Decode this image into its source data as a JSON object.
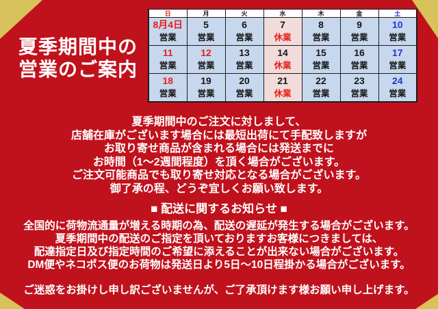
{
  "title": {
    "line1": "夏季期間中の",
    "line2": "営業のご案内"
  },
  "calendar": {
    "day_headers": [
      {
        "label": "日",
        "color": "red"
      },
      {
        "label": "月",
        "color": "black"
      },
      {
        "label": "火",
        "color": "black"
      },
      {
        "label": "水",
        "color": "black"
      },
      {
        "label": "木",
        "color": "black"
      },
      {
        "label": "金",
        "color": "black"
      },
      {
        "label": "土",
        "color": "blue"
      }
    ],
    "open_label": "営業",
    "closed_label": "休業",
    "weeks": [
      [
        {
          "date": "8月4日",
          "date_color": "red",
          "status": "営業",
          "status_color": "black",
          "bg": "blue"
        },
        {
          "date": "5",
          "date_color": "black",
          "status": "営業",
          "status_color": "black",
          "bg": "blue"
        },
        {
          "date": "6",
          "date_color": "black",
          "status": "営業",
          "status_color": "black",
          "bg": "blue"
        },
        {
          "date": "7",
          "date_color": "black",
          "status": "休業",
          "status_color": "red",
          "bg": "pink"
        },
        {
          "date": "8",
          "date_color": "black",
          "status": "営業",
          "status_color": "black",
          "bg": "blue"
        },
        {
          "date": "9",
          "date_color": "black",
          "status": "営業",
          "status_color": "black",
          "bg": "blue"
        },
        {
          "date": "10",
          "date_color": "blue",
          "status": "営業",
          "status_color": "black",
          "bg": "blue"
        }
      ],
      [
        {
          "date": "11",
          "date_color": "red",
          "status": "営業",
          "status_color": "black",
          "bg": "blue"
        },
        {
          "date": "12",
          "date_color": "red",
          "status": "営業",
          "status_color": "black",
          "bg": "blue"
        },
        {
          "date": "13",
          "date_color": "black",
          "status": "営業",
          "status_color": "black",
          "bg": "blue"
        },
        {
          "date": "14",
          "date_color": "black",
          "status": "休業",
          "status_color": "red",
          "bg": "pink"
        },
        {
          "date": "15",
          "date_color": "black",
          "status": "営業",
          "status_color": "black",
          "bg": "blue"
        },
        {
          "date": "16",
          "date_color": "black",
          "status": "営業",
          "status_color": "black",
          "bg": "blue"
        },
        {
          "date": "17",
          "date_color": "blue",
          "status": "営業",
          "status_color": "black",
          "bg": "blue"
        }
      ],
      [
        {
          "date": "18",
          "date_color": "red",
          "status": "営業",
          "status_color": "black",
          "bg": "blue"
        },
        {
          "date": "19",
          "date_color": "black",
          "status": "営業",
          "status_color": "black",
          "bg": "blue"
        },
        {
          "date": "20",
          "date_color": "black",
          "status": "営業",
          "status_color": "black",
          "bg": "blue"
        },
        {
          "date": "21",
          "date_color": "black",
          "status": "休業",
          "status_color": "red",
          "bg": "pink"
        },
        {
          "date": "22",
          "date_color": "black",
          "status": "営業",
          "status_color": "black",
          "bg": "blue"
        },
        {
          "date": "23",
          "date_color": "black",
          "status": "営業",
          "status_color": "black",
          "bg": "blue"
        },
        {
          "date": "24",
          "date_color": "blue",
          "status": "営業",
          "status_color": "black",
          "bg": "blue"
        }
      ]
    ]
  },
  "order_notice": {
    "lines": [
      "夏季期間中のご注文に対しまして、",
      "店舗在庫がございます場合には最短出荷にて手配致しますが",
      "お取り寄せ商品が含まれる場合には発送までに",
      "お時間（1～2週間程度）を頂く場合がございます。",
      "ご注文可能商品でも取り寄せ対応となる場合がございます。",
      "御了承の程、どうぞ宜しくお願い致します。"
    ]
  },
  "shipping_notice": {
    "heading": "■ 配送に関するお知らせ ■",
    "lines": [
      "全国的に荷物流通量が増える時期の為、配送の遅延が発生する場合がございます。",
      "夏季期間中の配送のご指定を頂いておりますお客様につきましては、",
      "配達指定日及び指定時間のご希望に添えることが出来ない場合がございます。",
      "DM便やネコポス便のお荷物は発送日より5日～10日程掛かる場合がございます。"
    ]
  },
  "closing_line": "ご迷惑をお掛けし申し訳ございませんが、ご了承頂けます様お願い申し上げます。",
  "colors": {
    "bg_red": "#c0121d",
    "ribbon_gold": "#d7c25b",
    "cell_blue": "#c7d8ee",
    "cell_pink": "#f2dcdb",
    "accent_red": "#e51f1a",
    "accent_blue": "#2433cf"
  }
}
